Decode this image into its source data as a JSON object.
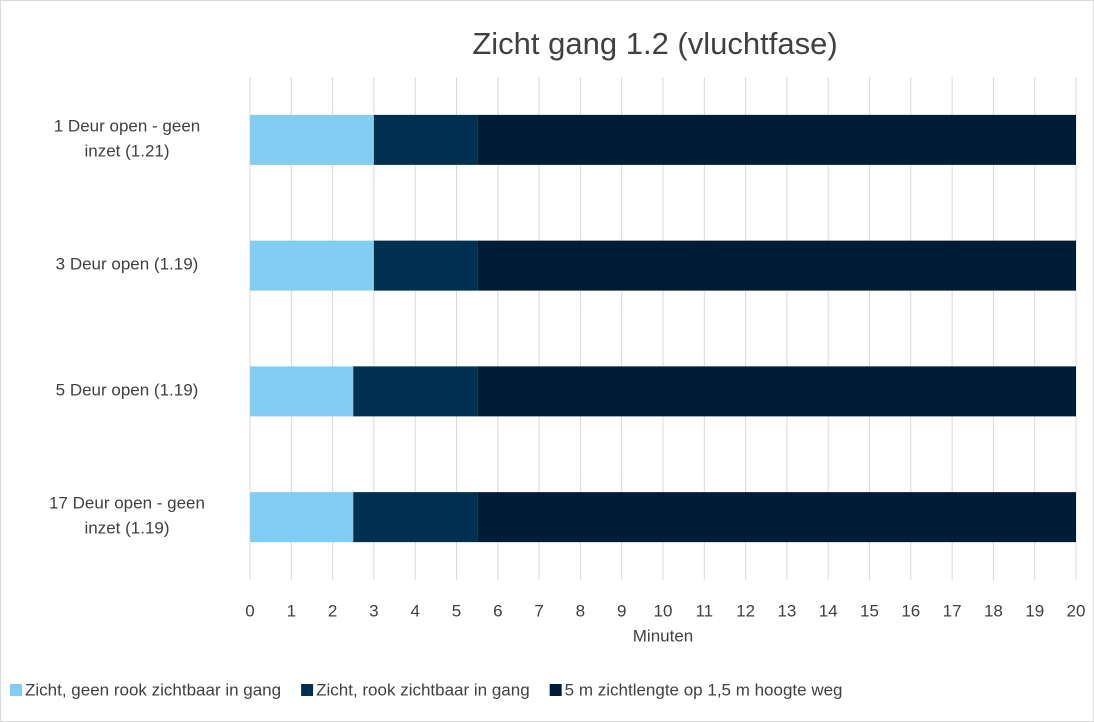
{
  "chart_data": {
    "type": "stacked-barh",
    "title": "Zicht gang 1.2 (vluchtfase)",
    "xlabel": "Minuten",
    "categories": [
      "1 Deur open - geen inzet (1.21)",
      "3 Deur open (1.19)",
      "5 Deur open (1.19)",
      "17 Deur open - geen inzet (1.19)"
    ],
    "series": [
      {
        "name": "Zicht, geen rook zichtbaar in gang",
        "color": "#82cdf2",
        "values": [
          3,
          3,
          2.5,
          2.5
        ]
      },
      {
        "name": "Zicht, rook zichtbaar in gang",
        "color": "#00304f",
        "values": [
          2.5,
          2.5,
          3,
          3
        ]
      },
      {
        "name": "5 m zichtlengte op 1,5 m hoogte weg",
        "color": "#011d35",
        "values": [
          14.5,
          14.5,
          14.5,
          14.5
        ]
      }
    ],
    "xlim": [
      0,
      20
    ],
    "xticks": [
      0,
      1,
      2,
      3,
      4,
      5,
      6,
      7,
      8,
      9,
      10,
      11,
      12,
      13,
      14,
      15,
      16,
      17,
      18,
      19,
      20
    ],
    "grid": true,
    "legend": "bottom"
  }
}
